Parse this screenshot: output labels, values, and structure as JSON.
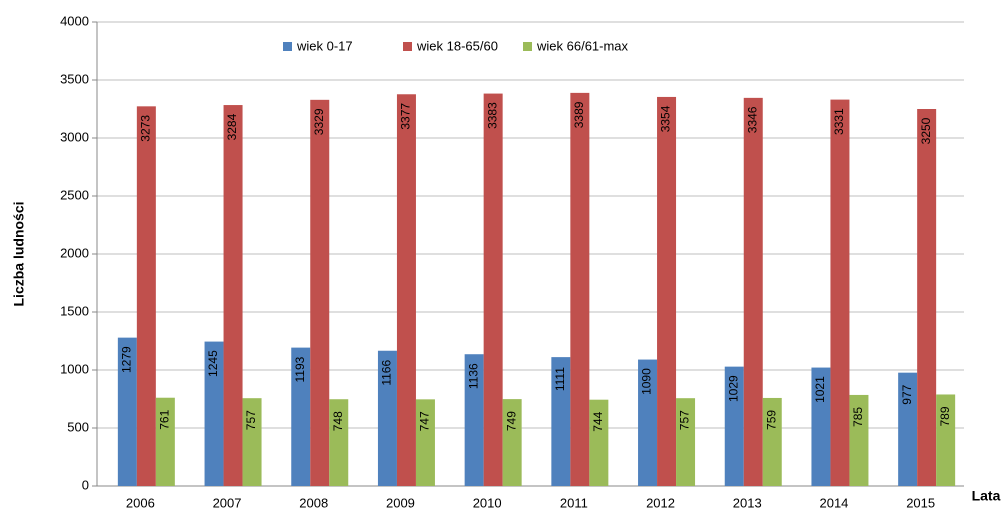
{
  "chart_data": {
    "type": "bar",
    "y_label": "Liczba ludności",
    "x_label": "Lata",
    "categories": [
      "2006",
      "2007",
      "2008",
      "2009",
      "2010",
      "2011",
      "2012",
      "2013",
      "2014",
      "2015"
    ],
    "series": [
      {
        "name": "wiek 0-17",
        "color": "#4f81bd",
        "values": [
          1279,
          1245,
          1193,
          1166,
          1136,
          1111,
          1090,
          1029,
          1021,
          977
        ]
      },
      {
        "name": "wiek 18-65/60",
        "color": "#c0504d",
        "values": [
          3273,
          3284,
          3329,
          3377,
          3383,
          3389,
          3354,
          3346,
          3331,
          3250
        ]
      },
      {
        "name": "wiek 66/61-max",
        "color": "#9bbb59",
        "values": [
          761,
          757,
          748,
          747,
          749,
          744,
          757,
          759,
          785,
          789
        ]
      }
    ],
    "ylim": [
      0,
      4000
    ],
    "yticks": [
      0,
      500,
      1000,
      1500,
      2000,
      2500,
      3000,
      3500,
      4000
    ],
    "grid": true,
    "legend": "top"
  }
}
